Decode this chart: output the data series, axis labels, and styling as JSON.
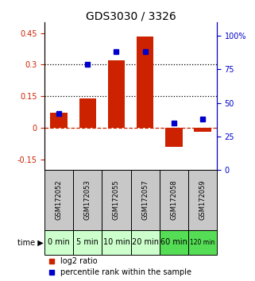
{
  "title": "GDS3030 / 3326",
  "samples": [
    "GSM172052",
    "GSM172053",
    "GSM172055",
    "GSM172057",
    "GSM172058",
    "GSM172059"
  ],
  "time_labels": [
    "0 min",
    "5 min",
    "10 min",
    "20 min",
    "60 min",
    "120 min"
  ],
  "log2_ratio": [
    0.07,
    0.14,
    0.32,
    0.435,
    -0.09,
    -0.02
  ],
  "percentile_rank": [
    42,
    79,
    88,
    88,
    35,
    38
  ],
  "ylim_left": [
    -0.2,
    0.5
  ],
  "ylim_right": [
    0,
    110
  ],
  "yticks_left": [
    -0.15,
    0,
    0.15,
    0.3,
    0.45
  ],
  "yticks_right": [
    0,
    25,
    50,
    75,
    100
  ],
  "ytick_labels_left": [
    "-0.15",
    "0",
    "0.15",
    "0.3",
    "0.45"
  ],
  "ytick_labels_right": [
    "0",
    "25",
    "50",
    "75",
    "100%"
  ],
  "hlines": [
    0.15,
    0.3
  ],
  "bar_color": "#cc2200",
  "dot_color": "#0000cc",
  "zero_line_color": "#cc2200",
  "hline_color": "#000000",
  "gray_bg": "#c8c8c8",
  "green_colors": [
    "#ccffcc",
    "#ccffcc",
    "#ccffcc",
    "#ccffcc",
    "#55dd55",
    "#55dd55"
  ],
  "legend_bar_label": "log2 ratio",
  "legend_dot_label": "percentile rank within the sample",
  "time_label": "time",
  "title_fontsize": 10,
  "tick_fontsize": 7,
  "sample_fontsize": 6,
  "time_fontsize": 7,
  "legend_fontsize": 7
}
